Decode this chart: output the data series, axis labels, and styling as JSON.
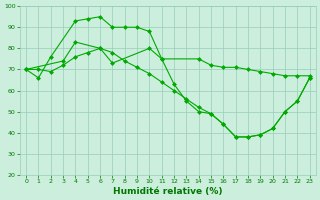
{
  "line1_x": [
    0,
    1,
    2,
    4,
    5,
    6,
    7,
    8,
    9,
    10,
    11,
    12,
    13,
    14,
    15,
    16,
    17,
    18,
    19,
    20,
    21,
    22,
    23
  ],
  "line1_y": [
    70,
    66,
    76,
    93,
    94,
    95,
    90,
    90,
    90,
    88,
    75,
    63,
    55,
    50,
    49,
    44,
    38,
    38,
    39,
    42,
    50,
    55,
    66
  ],
  "line2_x": [
    0,
    3,
    4,
    6,
    7,
    10,
    11,
    14,
    15,
    16,
    17,
    18,
    19,
    20,
    21,
    22,
    23
  ],
  "line2_y": [
    70,
    74,
    83,
    80,
    73,
    80,
    75,
    75,
    72,
    71,
    71,
    70,
    69,
    68,
    67,
    67,
    67
  ],
  "line3_x": [
    0,
    1,
    2,
    3,
    4,
    5,
    6,
    7,
    8,
    9,
    10,
    11,
    12,
    13,
    14,
    15,
    16,
    17,
    18,
    19,
    20,
    21,
    22,
    23
  ],
  "line3_y": [
    70,
    70,
    69,
    72,
    76,
    78,
    80,
    78,
    74,
    71,
    68,
    64,
    60,
    56,
    52,
    49,
    44,
    38,
    38,
    39,
    42,
    50,
    55,
    66
  ],
  "line_color": "#00aa00",
  "marker": "D",
  "markersize": 2.5,
  "bg_color": "#cceedd",
  "grid_color": "#99ccbb",
  "xlabel": "Humidité relative (%)",
  "tick_color": "#007700",
  "ylim": [
    20,
    100
  ],
  "yticks": [
    20,
    30,
    40,
    50,
    60,
    70,
    80,
    90,
    100
  ],
  "xlim": [
    0,
    23
  ],
  "xticks": [
    0,
    1,
    2,
    3,
    4,
    5,
    6,
    7,
    8,
    9,
    10,
    11,
    12,
    13,
    14,
    15,
    16,
    17,
    18,
    19,
    20,
    21,
    22,
    23
  ]
}
